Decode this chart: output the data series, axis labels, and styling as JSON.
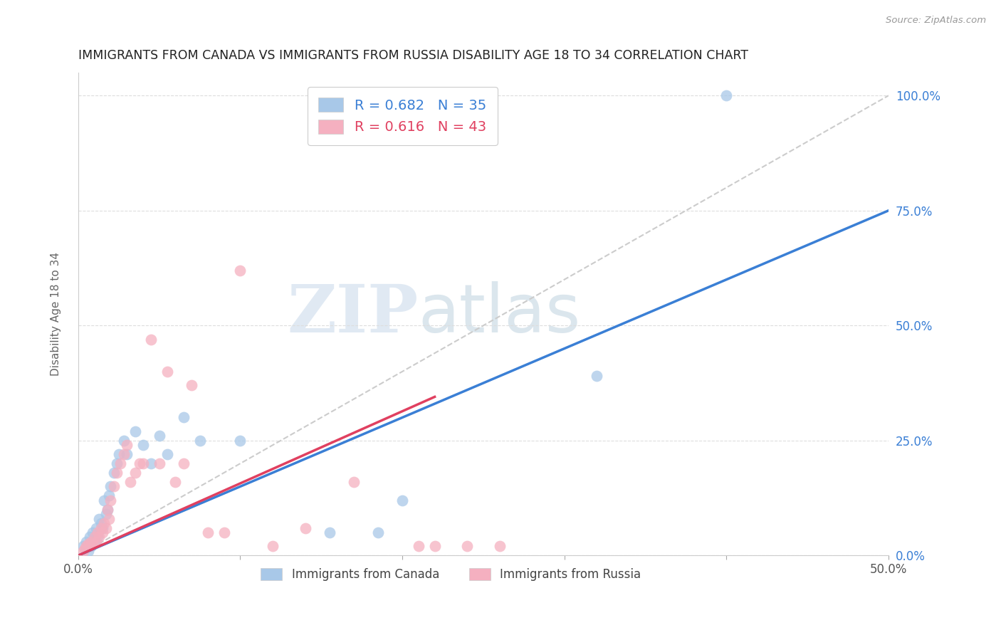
{
  "title": "IMMIGRANTS FROM CANADA VS IMMIGRANTS FROM RUSSIA DISABILITY AGE 18 TO 34 CORRELATION CHART",
  "source": "Source: ZipAtlas.com",
  "ylabel": "Disability Age 18 to 34",
  "xmin": 0.0,
  "xmax": 0.5,
  "ymin": 0.0,
  "ymax": 1.05,
  "x_ticks": [
    0.0,
    0.1,
    0.2,
    0.3,
    0.4,
    0.5
  ],
  "x_tick_labels": [
    "0.0%",
    "",
    "",
    "",
    "",
    "50.0%"
  ],
  "y_tick_labels_right": [
    "0.0%",
    "25.0%",
    "50.0%",
    "75.0%",
    "100.0%"
  ],
  "y_tick_vals_right": [
    0.0,
    0.25,
    0.5,
    0.75,
    1.0
  ],
  "canada_R": 0.682,
  "canada_N": 35,
  "russia_R": 0.616,
  "russia_N": 43,
  "canada_color": "#a8c8e8",
  "russia_color": "#f5b0c0",
  "canada_line_color": "#3a7fd5",
  "russia_line_color": "#e04060",
  "diagonal_color": "#cccccc",
  "legend_canada_label": "Immigrants from Canada",
  "legend_russia_label": "Immigrants from Russia",
  "canada_line_x0": 0.0,
  "canada_line_y0": 0.0,
  "canada_line_x1": 0.5,
  "canada_line_y1": 0.75,
  "russia_line_x0": 0.0,
  "russia_line_y0": 0.0,
  "russia_line_x1": 0.22,
  "russia_line_y1": 0.345,
  "canada_points_x": [
    0.003,
    0.005,
    0.006,
    0.007,
    0.008,
    0.009,
    0.01,
    0.011,
    0.012,
    0.013,
    0.014,
    0.015,
    0.016,
    0.017,
    0.018,
    0.019,
    0.02,
    0.022,
    0.024,
    0.025,
    0.028,
    0.03,
    0.035,
    0.04,
    0.045,
    0.05,
    0.055,
    0.065,
    0.075,
    0.1,
    0.155,
    0.185,
    0.2,
    0.32,
    0.4
  ],
  "canada_points_y": [
    0.02,
    0.03,
    0.01,
    0.04,
    0.02,
    0.05,
    0.03,
    0.06,
    0.04,
    0.08,
    0.07,
    0.06,
    0.12,
    0.09,
    0.1,
    0.13,
    0.15,
    0.18,
    0.2,
    0.22,
    0.25,
    0.22,
    0.27,
    0.24,
    0.2,
    0.26,
    0.22,
    0.3,
    0.25,
    0.25,
    0.05,
    0.05,
    0.12,
    0.39,
    1.0
  ],
  "russia_points_x": [
    0.003,
    0.004,
    0.005,
    0.006,
    0.007,
    0.008,
    0.009,
    0.01,
    0.011,
    0.012,
    0.013,
    0.014,
    0.015,
    0.016,
    0.017,
    0.018,
    0.019,
    0.02,
    0.022,
    0.024,
    0.026,
    0.028,
    0.03,
    0.032,
    0.035,
    0.038,
    0.04,
    0.045,
    0.05,
    0.055,
    0.06,
    0.065,
    0.07,
    0.08,
    0.09,
    0.1,
    0.12,
    0.14,
    0.17,
    0.21,
    0.22,
    0.24,
    0.26
  ],
  "russia_points_y": [
    0.01,
    0.015,
    0.02,
    0.025,
    0.02,
    0.03,
    0.025,
    0.04,
    0.03,
    0.05,
    0.04,
    0.06,
    0.05,
    0.07,
    0.06,
    0.1,
    0.08,
    0.12,
    0.15,
    0.18,
    0.2,
    0.22,
    0.24,
    0.16,
    0.18,
    0.2,
    0.2,
    0.47,
    0.2,
    0.4,
    0.16,
    0.2,
    0.37,
    0.05,
    0.05,
    0.62,
    0.02,
    0.06,
    0.16,
    0.02,
    0.02,
    0.02,
    0.02
  ],
  "watermark_zip": "ZIP",
  "watermark_atlas": "atlas",
  "background_color": "#ffffff",
  "grid_color": "#dddddd"
}
